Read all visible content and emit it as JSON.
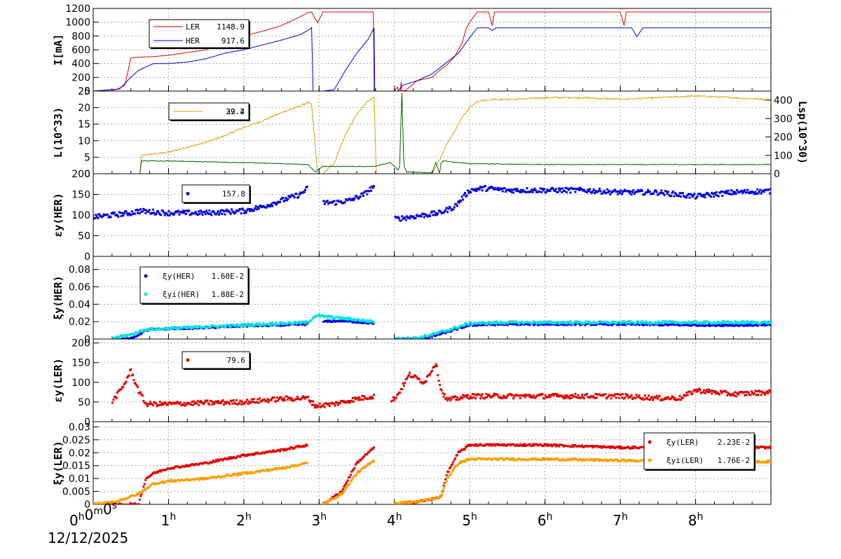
{
  "colors": {
    "ler": "#e00000",
    "her": "#0000e0",
    "lum": "#d8a000",
    "lsp": "#006000",
    "her_i": "#00e0e0",
    "ler_i": "#f8a000"
  },
  "date_label": "12/12/2025",
  "chart_data": {
    "type": "line",
    "x_axis": {
      "unit": "hours",
      "range": [
        0,
        9
      ],
      "tick_labels": [
        "0h0m0s",
        "1h",
        "2h",
        "3h",
        "4h",
        "5h",
        "6h",
        "7h",
        "8h"
      ],
      "tick_values": [
        0,
        1,
        2,
        3,
        4,
        5,
        6,
        7,
        8
      ]
    },
    "panels": [
      {
        "id": "current",
        "ylabel": "I[mA]",
        "ylim": [
          0,
          1200
        ],
        "yticks": [
          0,
          200,
          400,
          600,
          800,
          1000,
          1200
        ],
        "legend": [
          {
            "name": "LER",
            "value": "1148.9",
            "color": "#e00000"
          },
          {
            "name": "HER",
            "value": "917.6",
            "color": "#0000e0"
          }
        ],
        "series": [
          {
            "name": "LER",
            "color": "#e00000",
            "style": "line",
            "x": [
              0,
              0.3,
              0.42,
              0.5,
              0.6,
              0.8,
              1.0,
              1.25,
              1.5,
              1.75,
              2.0,
              2.25,
              2.5,
              2.75,
              2.85,
              2.9,
              2.98,
              3.05,
              3.7,
              3.72,
              3.73,
              3.76,
              3.95,
              4.0,
              4.04,
              4.05,
              4.08,
              4.09,
              4.1,
              4.15,
              4.3,
              4.5,
              4.6,
              4.7,
              4.8,
              4.9,
              4.95,
              5.0,
              5.1,
              5.25,
              5.3,
              5.33,
              5.4,
              5.6,
              6.0,
              6.5,
              7.0,
              7.05,
              7.08,
              7.15,
              7.3,
              8.0,
              8.5,
              9.0
            ],
            "y": [
              0,
              20,
              80,
              480,
              490,
              500,
              520,
              560,
              600,
              700,
              800,
              870,
              950,
              1080,
              1140,
              1148,
              990,
              1148,
              1148,
              1148,
              0,
              0,
              0,
              0,
              60,
              0,
              0,
              130,
              0,
              10,
              150,
              200,
              300,
              380,
              500,
              700,
              900,
              1000,
              1148,
              1148,
              950,
              1148,
              1148,
              1148,
              1148,
              1148,
              1148,
              950,
              1148,
              1148,
              1148,
              1148,
              1148,
              1148
            ]
          },
          {
            "name": "HER",
            "color": "#0000e0",
            "style": "line",
            "x": [
              0,
              0.35,
              0.5,
              0.6,
              0.8,
              1.0,
              1.25,
              1.5,
              1.75,
              2.0,
              2.25,
              2.5,
              2.75,
              2.85,
              2.9,
              2.92,
              3.05,
              3.2,
              3.35,
              3.5,
              3.65,
              3.73,
              3.74,
              4.05,
              4.1,
              4.3,
              4.5,
              4.7,
              4.85,
              4.95,
              5.05,
              5.1,
              5.25,
              5.3,
              5.35,
              5.5,
              6.0,
              6.5,
              7.0,
              7.15,
              7.22,
              7.3,
              7.5,
              8.0,
              8.5,
              9.0
            ],
            "y": [
              0,
              30,
              200,
              300,
              400,
              400,
              420,
              470,
              550,
              600,
              670,
              740,
              820,
              880,
              920,
              0,
              0,
              20,
              300,
              550,
              750,
              917,
              0,
              0,
              80,
              150,
              250,
              420,
              550,
              700,
              850,
              917,
              917,
              880,
              917,
              917,
              917,
              917,
              917,
              917,
              790,
              917,
              917,
              917,
              917,
              917
            ]
          }
        ]
      },
      {
        "id": "luminosity",
        "ylabel": "L(10^33)",
        "ylim": [
          0,
          25
        ],
        "yticks": [
          0,
          5,
          10,
          15,
          20,
          25
        ],
        "ylabel_right": "Lsp(10^30)",
        "ylim_right": [
          0,
          450
        ],
        "yticks_right": [
          0,
          100,
          200,
          300,
          400
        ],
        "legend": [
          {
            "name": "",
            "value": "39.2",
            "color": "#d8a000"
          },
          {
            "name": "",
            "value": "22.4",
            "color": "#d8a000"
          }
        ],
        "series": [
          {
            "name": "L",
            "color": "#d8a000",
            "style": "line",
            "noisy": 0.5,
            "x": [
              0,
              0.5,
              0.62,
              0.64,
              0.8,
              1.0,
              1.25,
              1.5,
              1.75,
              2.0,
              2.25,
              2.5,
              2.75,
              2.85,
              2.9,
              2.98,
              3.05,
              3.2,
              3.35,
              3.5,
              3.65,
              3.73,
              3.76,
              4.5,
              4.62,
              4.7,
              4.8,
              4.9,
              5.0,
              5.1,
              5.3,
              5.6,
              6.0,
              6.5,
              7.0,
              7.5,
              8.0,
              8.5,
              9.0
            ],
            "y": [
              0,
              0,
              0,
              5.5,
              6.0,
              6.5,
              8.0,
              9.5,
              11.5,
              14.0,
              16.0,
              18.5,
              20.5,
              21.5,
              21.0,
              0,
              0,
              3,
              12,
              18,
              22,
              23,
              0,
              0,
              5,
              9,
              13,
              17,
              20,
              22,
              22.5,
              22.5,
              23,
              23,
              22.5,
              23,
              23.5,
              23,
              22.4
            ]
          },
          {
            "name": "Lsp",
            "color": "#006000",
            "style": "line",
            "axis": "right",
            "noisy": 4,
            "x": [
              0,
              0.62,
              0.64,
              1.0,
              1.5,
              2.0,
              2.5,
              2.85,
              2.95,
              3.05,
              3.3,
              3.73,
              3.95,
              4.0,
              4.05,
              4.07,
              4.08,
              4.1,
              4.12,
              4.13,
              4.16,
              4.5,
              4.55,
              4.6,
              4.62,
              4.65,
              4.75,
              5.0,
              6.0,
              7.0,
              8.0,
              9.0
            ],
            "y": [
              0,
              0,
              70,
              70,
              65,
              60,
              55,
              50,
              10,
              40,
              40,
              40,
              60,
              40,
              20,
              40,
              200,
              440,
              120,
              40,
              10,
              5,
              60,
              5,
              60,
              70,
              65,
              55,
              50,
              50,
              50,
              50
            ]
          }
        ]
      },
      {
        "id": "eps_her",
        "ylabel": "εy(HER)",
        "ylim": [
          0,
          200
        ],
        "yticks": [
          0,
          50,
          100,
          150,
          200
        ],
        "legend": [
          {
            "name": "",
            "value": "157.8",
            "color": "#0000e0"
          }
        ],
        "series": [
          {
            "name": "εy(HER)",
            "color": "#0000e0",
            "style": "scatter",
            "noisy": 6,
            "x": [
              0,
              0.5,
              0.6,
              1.0,
              1.5,
              2.0,
              2.25,
              2.5,
              2.75,
              2.85,
              2.9,
              3.05,
              3.2,
              3.4,
              3.6,
              3.73,
              3.9,
              4.0,
              4.2,
              4.4,
              4.6,
              4.8,
              5.0,
              5.2,
              5.5,
              6.0,
              6.5,
              7.0,
              7.5,
              8.0,
              8.5,
              9.0
            ],
            "y": [
              95,
              105,
              110,
              105,
              105,
              110,
              120,
              135,
              150,
              165,
              null,
              130,
              130,
              135,
              150,
              170,
              null,
              90,
              95,
              100,
              105,
              120,
              160,
              165,
              160,
              160,
              160,
              155,
              155,
              145,
              155,
              158
            ]
          }
        ]
      },
      {
        "id": "xi_her",
        "ylabel": "ξy(HER)",
        "ylim": [
          0,
          0.095
        ],
        "yticks": [
          0,
          0.02,
          0.04,
          0.06,
          0.08
        ],
        "legend": [
          {
            "name": "ξy(HER)",
            "value": "1.60E-2",
            "color": "#0000e0"
          },
          {
            "name": "ξyi(HER)",
            "value": "1.88E-2",
            "color": "#00e0e0"
          }
        ],
        "series": [
          {
            "name": "ξy(HER)",
            "color": "#0000e0",
            "style": "scatter",
            "noisy": 0.001,
            "x": [
              0.25,
              0.5,
              0.7,
              1.0,
              1.5,
              2.0,
              2.5,
              2.85,
              2.95,
              3.05,
              3.3,
              3.73,
              3.9,
              4.0,
              4.3,
              4.5,
              4.7,
              5.0,
              5.5,
              6.0,
              7.0,
              8.0,
              9.0
            ],
            "y": [
              0,
              0,
              0.01,
              0.012,
              0.013,
              0.015,
              0.016,
              0.017,
              null,
              0.02,
              0.021,
              0.018,
              null,
              0,
              0,
              0.003,
              0.008,
              0.016,
              0.017,
              0.017,
              0.017,
              0.016,
              0.016
            ]
          },
          {
            "name": "ξyi(HER)",
            "color": "#00e0e0",
            "style": "scatter",
            "noisy": 0.0015,
            "x": [
              0.25,
              0.5,
              0.7,
              1.0,
              1.5,
              2.0,
              2.5,
              2.85,
              2.95,
              3.05,
              3.3,
              3.73,
              3.9,
              4.0,
              4.3,
              4.5,
              4.7,
              5.0,
              5.5,
              6.0,
              7.0,
              8.0,
              9.0
            ],
            "y": [
              0.001,
              0.005,
              0.011,
              0.012,
              0.014,
              0.016,
              0.018,
              0.019,
              0.027,
              0.026,
              0.024,
              0.02,
              null,
              0,
              0.001,
              0.005,
              0.01,
              0.018,
              0.019,
              0.019,
              0.019,
              0.019,
              0.019
            ]
          }
        ]
      },
      {
        "id": "eps_ler",
        "ylabel": "εy(LER)",
        "ylim": [
          0,
          210
        ],
        "yticks": [
          0,
          50,
          100,
          150,
          200
        ],
        "legend": [
          {
            "name": "",
            "value": "79.6",
            "color": "#e00000"
          }
        ],
        "series": [
          {
            "name": "εy(LER)",
            "color": "#e00000",
            "style": "scatter",
            "noisy": 6,
            "x": [
              0.25,
              0.4,
              0.5,
              0.6,
              0.7,
              1.0,
              1.5,
              2.0,
              2.5,
              2.85,
              2.95,
              3.2,
              3.5,
              3.73,
              3.9,
              3.95,
              4.05,
              4.2,
              4.4,
              4.55,
              4.62,
              4.7,
              5.0,
              5.5,
              6.0,
              6.5,
              7.0,
              7.5,
              7.8,
              8.0,
              8.5,
              9.0
            ],
            "y": [
              50,
              90,
              130,
              80,
              45,
              45,
              48,
              50,
              58,
              60,
              40,
              45,
              58,
              65,
              null,
              50,
              70,
              120,
              100,
              150,
              80,
              55,
              65,
              65,
              65,
              65,
              65,
              60,
              60,
              80,
              70,
              75
            ]
          }
        ]
      },
      {
        "id": "xi_ler",
        "ylabel": "ξy(LER)",
        "ylim": [
          0,
          0.032
        ],
        "yticks": [
          0,
          0.005,
          0.01,
          0.015,
          0.02,
          0.025,
          0.03
        ],
        "legend": [
          {
            "name": "ξy(LER)",
            "value": "2.23E-2",
            "color": "#e00000"
          },
          {
            "name": "ξyi(LER)",
            "value": "1.76E-2",
            "color": "#f8a000"
          }
        ],
        "series": [
          {
            "name": "ξy(LER)",
            "color": "#e00000",
            "style": "scatter",
            "noisy": 0.0004,
            "x": [
              0,
              0.6,
              0.7,
              0.8,
              1.0,
              1.5,
              2.0,
              2.5,
              2.85,
              2.95,
              3.05,
              3.3,
              3.5,
              3.73,
              3.9,
              4.0,
              4.3,
              4.5,
              4.62,
              4.7,
              4.85,
              5.0,
              5.5,
              6.0,
              7.0,
              8.0,
              9.0
            ],
            "y": [
              0,
              0,
              0.01,
              0.012,
              0.014,
              0.016,
              0.019,
              0.021,
              0.023,
              null,
              0,
              0.005,
              0.016,
              0.022,
              null,
              0,
              0.001,
              0.002,
              0.003,
              0.012,
              0.02,
              0.023,
              0.023,
              0.023,
              0.022,
              0.022,
              0.022
            ]
          },
          {
            "name": "ξyi(LER)",
            "color": "#f8a000",
            "style": "scatter",
            "noisy": 0.0004,
            "x": [
              0,
              0.3,
              0.6,
              0.8,
              1.0,
              1.5,
              2.0,
              2.5,
              2.85,
              2.95,
              3.05,
              3.3,
              3.5,
              3.73,
              3.9,
              4.0,
              4.3,
              4.5,
              4.62,
              4.7,
              4.85,
              5.0,
              5.5,
              6.0,
              7.0,
              8.0,
              9.0
            ],
            "y": [
              0,
              0.001,
              0.004,
              0.008,
              0.009,
              0.01,
              0.012,
              0.014,
              0.016,
              null,
              0,
              0.004,
              0.012,
              0.017,
              null,
              0.0005,
              0.001,
              0.002,
              0.003,
              0.01,
              0.016,
              0.0175,
              0.0175,
              0.0175,
              0.017,
              0.0165,
              0.0165
            ]
          }
        ]
      }
    ]
  }
}
